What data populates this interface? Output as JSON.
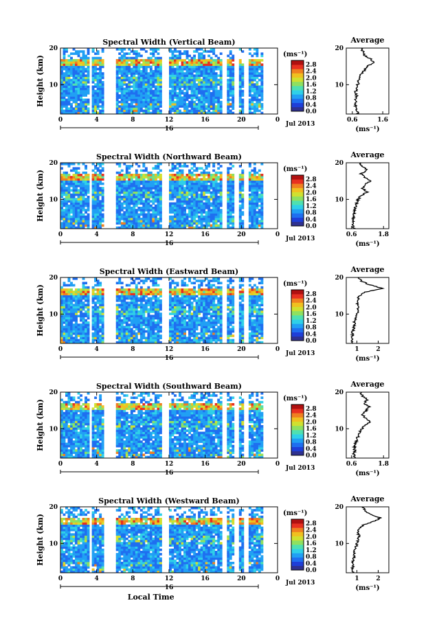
{
  "chart_data": [
    {
      "type": "heatmap",
      "title": "Spectral Width (Vertical Beam)",
      "ylabel": "Height (km)",
      "ylim": [
        2,
        20
      ],
      "y_ticks": [
        "10",
        "20"
      ],
      "xlim": [
        0,
        24
      ],
      "x_ticks": [
        "0",
        "4",
        "8",
        "12",
        "16",
        "20",
        "0"
      ],
      "date_label": "16",
      "month_label": "Jul 2013",
      "colorbar_unit": "(ms⁻¹)",
      "colorbar_ticks": [
        "2.8",
        "2.4",
        "2.0",
        "1.6",
        "1.2",
        "0.8",
        "0.4",
        "0.0"
      ],
      "average": {
        "title": "Average",
        "xlabel": "(ms⁻¹)",
        "x_ticks": [
          "0.6",
          "1.6"
        ],
        "y_ticks": [
          "10",
          "20"
        ],
        "xlim": [
          0.4,
          1.8
        ],
        "profile": [
          [
            0.8,
            2
          ],
          [
            0.75,
            3
          ],
          [
            0.7,
            4
          ],
          [
            0.72,
            5
          ],
          [
            0.68,
            6
          ],
          [
            0.74,
            7
          ],
          [
            0.7,
            8
          ],
          [
            0.76,
            9
          ],
          [
            0.78,
            10
          ],
          [
            0.8,
            11
          ],
          [
            0.85,
            12
          ],
          [
            0.9,
            13
          ],
          [
            1.0,
            14
          ],
          [
            1.1,
            15
          ],
          [
            1.3,
            16
          ],
          [
            1.2,
            17
          ],
          [
            1.0,
            18
          ],
          [
            0.95,
            19
          ],
          [
            0.9,
            20
          ]
        ]
      }
    },
    {
      "type": "heatmap",
      "title": "Spectral Width (Northward Beam)",
      "ylabel": "Height (km)",
      "ylim": [
        2,
        20
      ],
      "y_ticks": [
        "10",
        "20"
      ],
      "xlim": [
        0,
        24
      ],
      "x_ticks": [
        "0",
        "4",
        "8",
        "12",
        "16",
        "20",
        "0"
      ],
      "date_label": "16",
      "month_label": "Jul 2013",
      "colorbar_unit": "(ms⁻¹)",
      "colorbar_ticks": [
        "2.8",
        "2.4",
        "2.0",
        "1.6",
        "1.2",
        "0.8",
        "0.4",
        "0.0"
      ],
      "average": {
        "title": "Average",
        "xlabel": "(ms⁻¹)",
        "x_ticks": [
          "0.6",
          "1.8"
        ],
        "y_ticks": [
          "10",
          "20"
        ],
        "xlim": [
          0.4,
          2.0
        ],
        "profile": [
          [
            0.7,
            2
          ],
          [
            0.65,
            3
          ],
          [
            0.68,
            4
          ],
          [
            0.66,
            5
          ],
          [
            0.7,
            6
          ],
          [
            0.72,
            7
          ],
          [
            0.75,
            8
          ],
          [
            0.8,
            9
          ],
          [
            0.85,
            10
          ],
          [
            0.95,
            11
          ],
          [
            1.2,
            12
          ],
          [
            1.0,
            13
          ],
          [
            1.1,
            14
          ],
          [
            1.3,
            15
          ],
          [
            1.1,
            16
          ],
          [
            0.95,
            17
          ],
          [
            1.2,
            18
          ],
          [
            1.0,
            19
          ],
          [
            0.9,
            20
          ]
        ]
      }
    },
    {
      "type": "heatmap",
      "title": "Spectral Width (Eastward Beam)",
      "ylabel": "Height (km)",
      "ylim": [
        2,
        20
      ],
      "y_ticks": [
        "10",
        "20"
      ],
      "xlim": [
        0,
        24
      ],
      "x_ticks": [
        "0",
        "4",
        "8",
        "12",
        "16",
        "20",
        "0"
      ],
      "date_label": "16",
      "month_label": "Jul 2013",
      "colorbar_unit": "(ms⁻¹)",
      "colorbar_ticks": [
        "2.8",
        "2.4",
        "2.0",
        "1.6",
        "1.2",
        "0.8",
        "0.4",
        "0.0"
      ],
      "average": {
        "title": "Average",
        "xlabel": "(ms⁻¹)",
        "x_ticks": [
          "1",
          "2"
        ],
        "y_ticks": [
          "10",
          "20"
        ],
        "xlim": [
          0.5,
          2.5
        ],
        "profile": [
          [
            0.8,
            2
          ],
          [
            0.75,
            3
          ],
          [
            0.8,
            4
          ],
          [
            0.78,
            5
          ],
          [
            0.85,
            6
          ],
          [
            0.9,
            7
          ],
          [
            0.88,
            8
          ],
          [
            0.95,
            9
          ],
          [
            1.0,
            10
          ],
          [
            1.05,
            11
          ],
          [
            1.1,
            12
          ],
          [
            1.0,
            13
          ],
          [
            1.05,
            14
          ],
          [
            1.1,
            15
          ],
          [
            1.4,
            16
          ],
          [
            2.2,
            17
          ],
          [
            1.6,
            18
          ],
          [
            1.2,
            19
          ],
          [
            1.1,
            20
          ]
        ]
      }
    },
    {
      "type": "heatmap",
      "title": "Spectral Width (Southward Beam)",
      "ylabel": "Height (km)",
      "ylim": [
        2,
        20
      ],
      "y_ticks": [
        "10",
        "20"
      ],
      "xlim": [
        0,
        24
      ],
      "x_ticks": [
        "0",
        "4",
        "8",
        "12",
        "16",
        "20",
        "0"
      ],
      "date_label": "16",
      "month_label": "Jul 2013",
      "colorbar_unit": "(ms⁻¹)",
      "colorbar_ticks": [
        "2.8",
        "2.4",
        "2.0",
        "1.6",
        "1.2",
        "0.8",
        "0.4",
        "0.0"
      ],
      "average": {
        "title": "Average",
        "xlabel": "(ms⁻¹)",
        "x_ticks": [
          "0.6",
          "1.8"
        ],
        "y_ticks": [
          "10",
          "20"
        ],
        "xlim": [
          0.4,
          2.0
        ],
        "profile": [
          [
            0.7,
            2
          ],
          [
            0.68,
            3
          ],
          [
            0.72,
            4
          ],
          [
            0.7,
            5
          ],
          [
            0.75,
            6
          ],
          [
            0.8,
            7
          ],
          [
            0.85,
            8
          ],
          [
            0.9,
            9
          ],
          [
            1.0,
            10
          ],
          [
            1.1,
            11
          ],
          [
            1.3,
            12
          ],
          [
            1.1,
            13
          ],
          [
            1.0,
            14
          ],
          [
            1.15,
            15
          ],
          [
            1.25,
            16
          ],
          [
            1.05,
            17
          ],
          [
            1.2,
            18
          ],
          [
            1.0,
            19
          ],
          [
            0.95,
            20
          ]
        ]
      }
    },
    {
      "type": "heatmap",
      "title": "Spectral Width (Westward Beam)",
      "ylabel": "Height (km)",
      "xlabel": "Local Time",
      "ylim": [
        2,
        20
      ],
      "y_ticks": [
        "10",
        "20"
      ],
      "xlim": [
        0,
        24
      ],
      "x_ticks": [
        "0",
        "4",
        "8",
        "12",
        "16",
        "20",
        "0"
      ],
      "date_label": "16",
      "month_label": "Jul 2013",
      "colorbar_unit": "(ms⁻¹)",
      "colorbar_ticks": [
        "2.8",
        "2.4",
        "2.0",
        "1.6",
        "1.2",
        "0.8",
        "0.4",
        "0.0"
      ],
      "average": {
        "title": "Average",
        "xlabel": "(ms⁻¹)",
        "x_ticks": [
          "1",
          "2"
        ],
        "y_ticks": [
          "10",
          "20"
        ],
        "xlim": [
          0.5,
          2.5
        ],
        "profile": [
          [
            0.8,
            2
          ],
          [
            0.78,
            3
          ],
          [
            0.82,
            4
          ],
          [
            0.8,
            5
          ],
          [
            0.85,
            6
          ],
          [
            0.88,
            7
          ],
          [
            0.9,
            8
          ],
          [
            0.95,
            9
          ],
          [
            1.0,
            10
          ],
          [
            1.05,
            11
          ],
          [
            1.1,
            12
          ],
          [
            1.05,
            13
          ],
          [
            1.1,
            14
          ],
          [
            1.3,
            15
          ],
          [
            1.8,
            16
          ],
          [
            2.1,
            17
          ],
          [
            1.6,
            18
          ],
          [
            1.4,
            19
          ],
          [
            1.3,
            20
          ]
        ]
      }
    }
  ]
}
